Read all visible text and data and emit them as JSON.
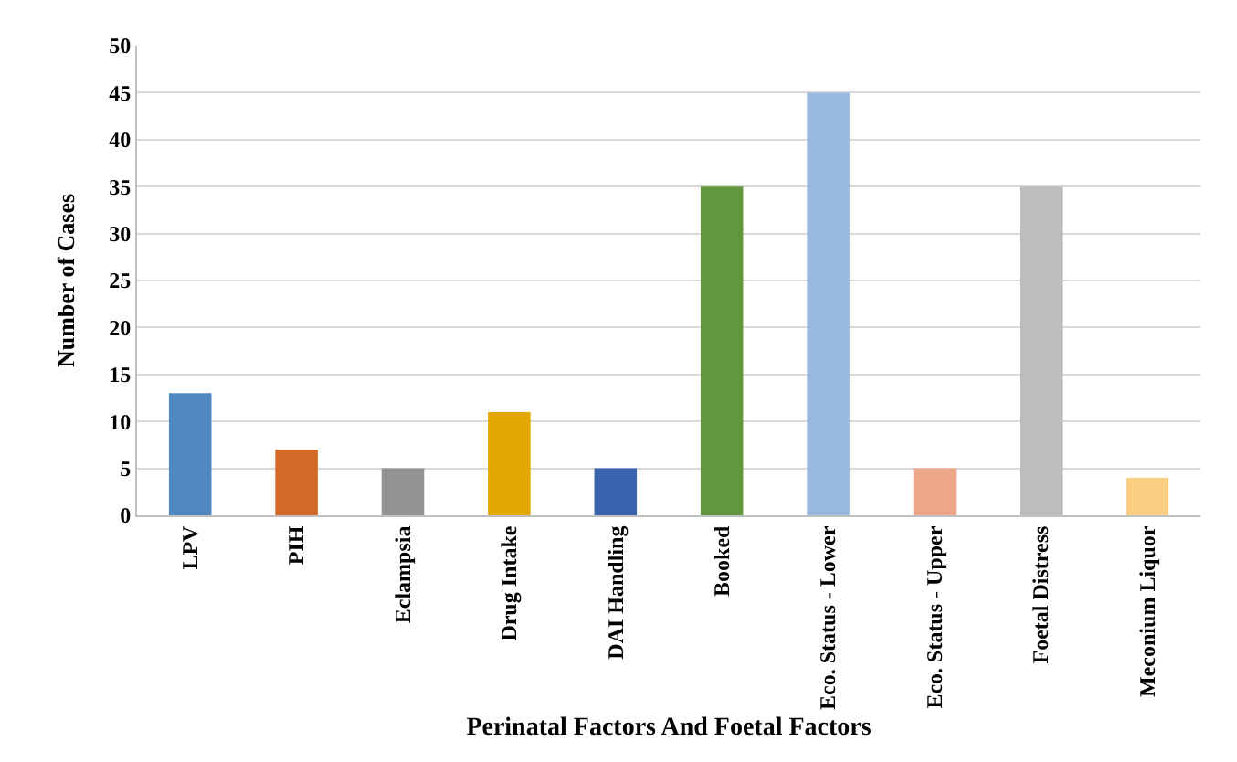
{
  "chart_data": {
    "type": "bar",
    "xlabel": "Perinatal Factors And Foetal Factors",
    "ylabel": "Number of Cases",
    "categories": [
      "LPV",
      "PIH",
      "Eclampsia",
      "Drug Intake",
      "DAI Handling",
      "Booked",
      "Eco. Status - Lower",
      "Eco. Status - Upper",
      "Foetal Distress",
      "Meconium Liquor"
    ],
    "values": [
      13,
      7,
      5,
      11,
      5,
      35,
      45,
      5,
      35,
      4
    ],
    "colors": [
      "#4f87c0",
      "#d46a2a",
      "#939393",
      "#e2a700",
      "#3a64ae",
      "#62973f",
      "#98b8e0",
      "#eda788",
      "#bdbdbd",
      "#fbcf82"
    ],
    "ylim": [
      0,
      50
    ],
    "yticks": [
      0,
      5,
      10,
      15,
      20,
      25,
      30,
      35,
      40,
      45,
      50
    ],
    "grid": "y"
  }
}
